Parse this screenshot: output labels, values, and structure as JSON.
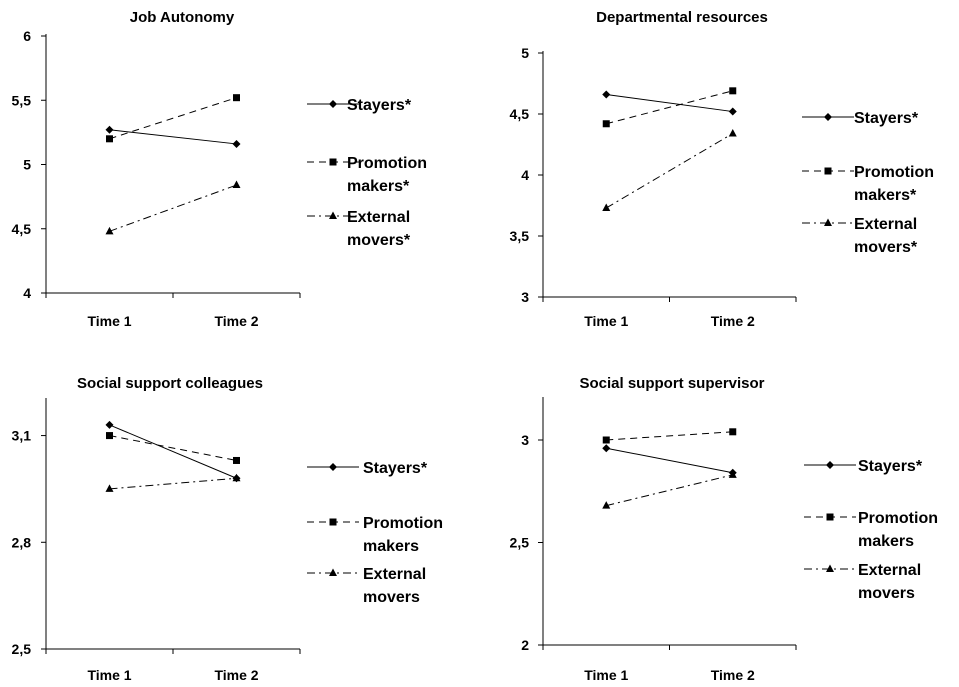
{
  "chart_data": [
    {
      "type": "line",
      "title": "Job Autonomy",
      "categories": [
        "Time 1",
        "Time 2"
      ],
      "ylim": [
        4,
        6
      ],
      "yticks": [
        "4",
        "4,5",
        "5",
        "5,5",
        "6"
      ],
      "series": [
        {
          "name": "Stayers*",
          "name_lines": [
            "Stayers*"
          ],
          "values": [
            5.27,
            5.16
          ]
        },
        {
          "name": "Promotion makers*",
          "name_lines": [
            "Promotion",
            "makers*"
          ],
          "values": [
            5.2,
            5.52
          ]
        },
        {
          "name": "External movers*",
          "name_lines": [
            "External",
            "movers*"
          ],
          "values": [
            4.48,
            4.84
          ]
        }
      ]
    },
    {
      "type": "line",
      "title": "Departmental resources",
      "categories": [
        "Time 1",
        "Time 2"
      ],
      "ylim": [
        3,
        5
      ],
      "yticks": [
        "3",
        "3,5",
        "4",
        "4,5",
        "5"
      ],
      "series": [
        {
          "name": "Stayers*",
          "name_lines": [
            "Stayers*"
          ],
          "values": [
            4.66,
            4.52
          ]
        },
        {
          "name": "Promotion makers*",
          "name_lines": [
            "Promotion",
            "makers*"
          ],
          "values": [
            4.42,
            4.69
          ]
        },
        {
          "name": "External movers*",
          "name_lines": [
            "External",
            "movers*"
          ],
          "values": [
            3.73,
            4.34
          ]
        }
      ]
    },
    {
      "type": "line",
      "title": "Social support colleagues",
      "categories": [
        "Time 1",
        "Time 2"
      ],
      "ylim": [
        2.5,
        3.2
      ],
      "yticks": [
        "2,5",
        "2,8",
        "3,1"
      ],
      "series": [
        {
          "name": "Stayers*",
          "name_lines": [
            "Stayers*"
          ],
          "values": [
            3.13,
            2.98
          ]
        },
        {
          "name": "Promotion makers",
          "name_lines": [
            "Promotion",
            "makers"
          ],
          "values": [
            3.1,
            3.03
          ]
        },
        {
          "name": "External movers",
          "name_lines": [
            "External",
            "movers"
          ],
          "values": [
            2.95,
            2.98
          ]
        }
      ]
    },
    {
      "type": "line",
      "title": "Social support supervisor",
      "categories": [
        "Time 1",
        "Time 2"
      ],
      "ylim": [
        2,
        3.2
      ],
      "yticks": [
        "2",
        "2,5",
        "3"
      ],
      "series": [
        {
          "name": "Stayers*",
          "name_lines": [
            "Stayers*"
          ],
          "values": [
            2.96,
            2.84
          ]
        },
        {
          "name": "Promotion makers",
          "name_lines": [
            "Promotion",
            "makers"
          ],
          "values": [
            3.0,
            3.04
          ]
        },
        {
          "name": "External movers",
          "name_lines": [
            "External",
            "movers"
          ],
          "values": [
            2.68,
            2.83
          ]
        }
      ]
    }
  ]
}
